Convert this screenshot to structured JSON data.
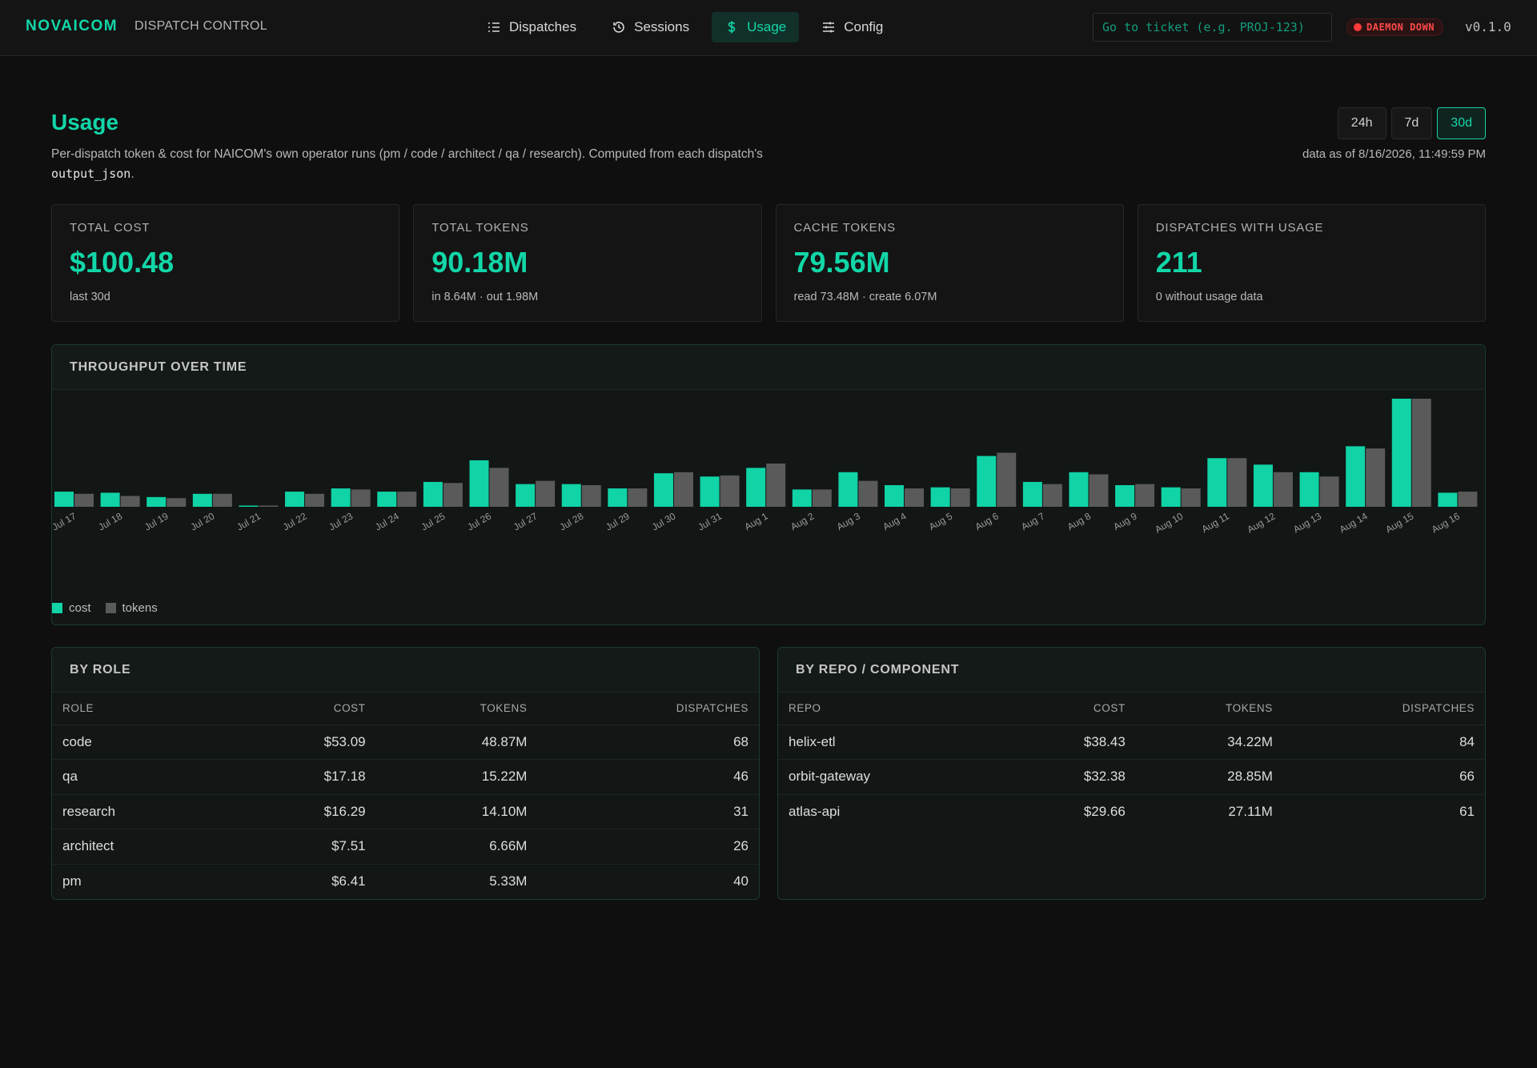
{
  "brand": {
    "name": "NOVAICOM",
    "subtitle": "DISPATCH CONTROL"
  },
  "nav": [
    {
      "label": "Dispatches",
      "icon": "list-icon",
      "active": false
    },
    {
      "label": "Sessions",
      "icon": "history-icon",
      "active": false
    },
    {
      "label": "Usage",
      "icon": "dollar-icon",
      "active": true
    },
    {
      "label": "Config",
      "icon": "sliders-icon",
      "active": false
    }
  ],
  "ticket_search": {
    "placeholder": "Go to ticket (e.g. PROJ-123)",
    "value": ""
  },
  "daemon_status": {
    "label": "DAEMON DOWN",
    "color": "#ff3b3b"
  },
  "version": "v0.1.0",
  "header": {
    "title": "Usage",
    "description_pre": "Per-dispatch token & cost for NAICOM's own operator runs (pm / code / architect / qa / research). Computed from each dispatch's ",
    "description_code": "output_json",
    "description_post": ".",
    "ranges": [
      {
        "label": "24h",
        "active": false
      },
      {
        "label": "7d",
        "active": false
      },
      {
        "label": "30d",
        "active": true
      }
    ],
    "data_as_of": "data as of 8/16/2026, 11:49:59 PM"
  },
  "stats": [
    {
      "label": "TOTAL COST",
      "value": "$100.48",
      "sub": "last 30d"
    },
    {
      "label": "TOTAL TOKENS",
      "value": "90.18M",
      "sub": "in 8.64M · out 1.98M"
    },
    {
      "label": "CACHE TOKENS",
      "value": "79.56M",
      "sub": "read 73.48M · create 6.07M"
    },
    {
      "label": "DISPATCHES WITH USAGE",
      "value": "211",
      "sub": "0 without usage data"
    }
  ],
  "colors": {
    "accent": "#12d6a8",
    "tokens_bar": "#5a5a5a",
    "cost_bar": "#10d3a6"
  },
  "chart_data": {
    "type": "bar",
    "title": "THROUGHPUT OVER TIME",
    "categories": [
      "Jul 17",
      "Jul 18",
      "Jul 19",
      "Jul 20",
      "Jul 21",
      "Jul 22",
      "Jul 23",
      "Jul 24",
      "Jul 25",
      "Jul 26",
      "Jul 27",
      "Jul 28",
      "Jul 29",
      "Jul 30",
      "Jul 31",
      "Aug 1",
      "Aug 2",
      "Aug 3",
      "Aug 4",
      "Aug 5",
      "Aug 6",
      "Aug 7",
      "Aug 8",
      "Aug 9",
      "Aug 10",
      "Aug 11",
      "Aug 12",
      "Aug 13",
      "Aug 14",
      "Aug 15",
      "Aug 16"
    ],
    "series": [
      {
        "name": "cost",
        "values": [
          0.14,
          0.13,
          0.09,
          0.12,
          0.01,
          0.14,
          0.17,
          0.14,
          0.23,
          0.43,
          0.21,
          0.21,
          0.17,
          0.31,
          0.28,
          0.36,
          0.16,
          0.32,
          0.2,
          0.18,
          0.47,
          0.23,
          0.32,
          0.2,
          0.18,
          0.45,
          0.39,
          0.32,
          0.56,
          1.0,
          0.13
        ]
      },
      {
        "name": "tokens",
        "values": [
          0.12,
          0.1,
          0.08,
          0.12,
          0.01,
          0.12,
          0.16,
          0.14,
          0.22,
          0.36,
          0.24,
          0.2,
          0.17,
          0.32,
          0.29,
          0.4,
          0.16,
          0.24,
          0.17,
          0.17,
          0.5,
          0.21,
          0.3,
          0.21,
          0.17,
          0.45,
          0.32,
          0.28,
          0.54,
          1.0,
          0.14
        ]
      }
    ],
    "ylim": [
      0,
      1
    ]
  },
  "by_role": {
    "title": "BY ROLE",
    "columns": [
      "ROLE",
      "COST",
      "TOKENS",
      "DISPATCHES"
    ],
    "rows": [
      [
        "code",
        "$53.09",
        "48.87M",
        "68"
      ],
      [
        "qa",
        "$17.18",
        "15.22M",
        "46"
      ],
      [
        "research",
        "$16.29",
        "14.10M",
        "31"
      ],
      [
        "architect",
        "$7.51",
        "6.66M",
        "26"
      ],
      [
        "pm",
        "$6.41",
        "5.33M",
        "40"
      ]
    ]
  },
  "by_repo": {
    "title": "BY REPO / COMPONENT",
    "columns": [
      "REPO",
      "COST",
      "TOKENS",
      "DISPATCHES"
    ],
    "rows": [
      [
        "helix-etl",
        "$38.43",
        "34.22M",
        "84"
      ],
      [
        "orbit-gateway",
        "$32.38",
        "28.85M",
        "66"
      ],
      [
        "atlas-api",
        "$29.66",
        "27.11M",
        "61"
      ]
    ]
  }
}
